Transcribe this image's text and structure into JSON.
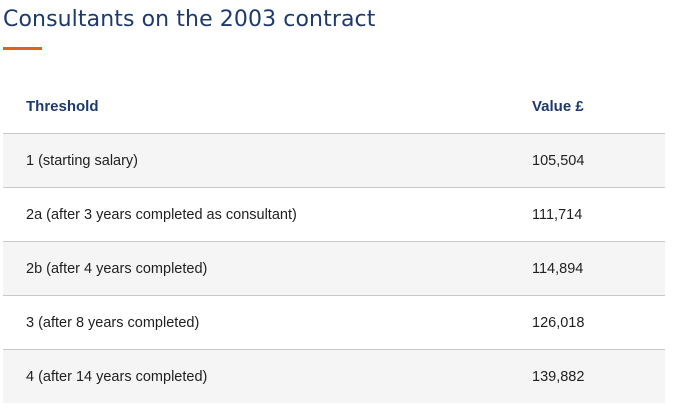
{
  "page": {
    "title": "Consultants on the 2003 contract",
    "accent_color": "#e0601e",
    "heading_color": "#1d3a6c"
  },
  "table": {
    "headers": [
      "Threshold",
      "Value £"
    ],
    "rows": [
      [
        "1 (starting salary)",
        "105,504"
      ],
      [
        "2a (after 3 years completed as consultant)",
        "111,714"
      ],
      [
        "2b (after 4 years completed)",
        "114,894"
      ],
      [
        "3 (after 8 years completed)",
        "126,018"
      ],
      [
        "4 (after 14 years completed)",
        "139,882"
      ]
    ]
  }
}
